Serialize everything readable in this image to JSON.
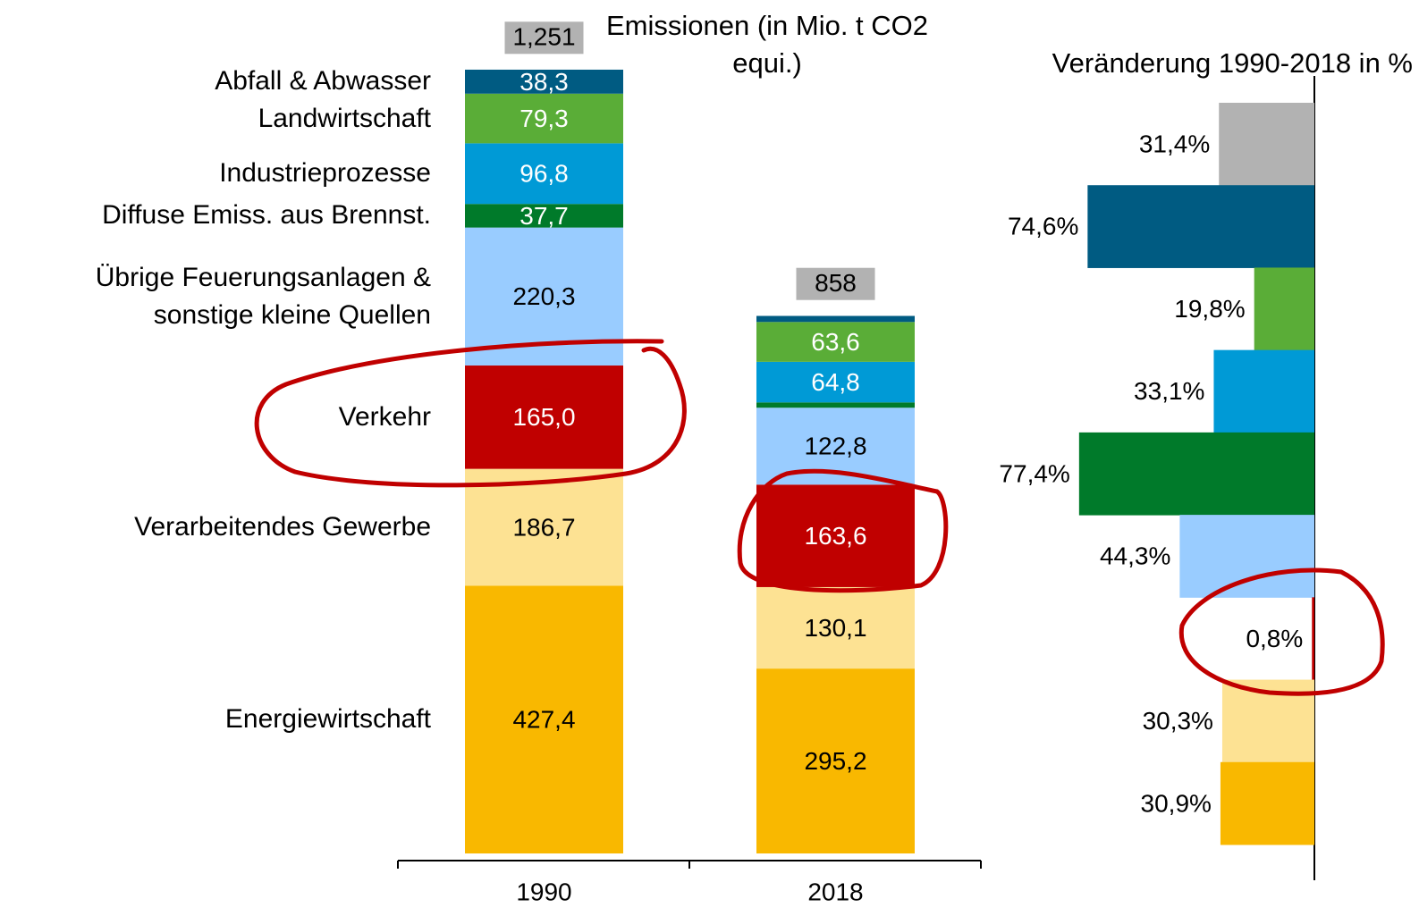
{
  "chart_data": [
    {
      "type": "stacked_bar",
      "title": "Emissionen (in Mio. t CO2 equi.)",
      "categories": [
        "1990",
        "2018"
      ],
      "ylim": [
        0,
        1260
      ],
      "series": [
        {
          "name": "Energiewirtschaft",
          "color": "#f9b800",
          "label_color": "#000000",
          "values": [
            427.4,
            295.2
          ],
          "value_labels": [
            "427,4",
            "295,2"
          ]
        },
        {
          "name": "Verarbeitendes Gewerbe",
          "color": "#fde293",
          "label_color": "#000000",
          "values": [
            186.7,
            130.1
          ],
          "value_labels": [
            "186,7",
            "130,1"
          ]
        },
        {
          "name": "Verkehr",
          "color": "#c00000",
          "label_color": "#ffffff",
          "values": [
            165.0,
            163.6
          ],
          "value_labels": [
            "165,0",
            "163,6"
          ]
        },
        {
          "name": "Übrige Feuerungsanlagen & sonstige kleine Quellen",
          "color": "#99ccff",
          "label_color": "#000000",
          "values": [
            220.3,
            122.8
          ],
          "value_labels": [
            "220,3",
            "122,8"
          ]
        },
        {
          "name": "Diffuse Emiss. aus Brennst.",
          "color": "#007a2a",
          "label_color": "#ffffff",
          "values": [
            37.7,
            8.5
          ],
          "value_labels": [
            "37,7",
            null
          ]
        },
        {
          "name": "Industrieprozesse",
          "color": "#009ad6",
          "label_color": "#ffffff",
          "values": [
            96.8,
            64.8
          ],
          "value_labels": [
            "96,8",
            "64,8"
          ]
        },
        {
          "name": "Landwirtschaft",
          "color": "#5aad37",
          "label_color": "#ffffff",
          "values": [
            79.3,
            63.6
          ],
          "value_labels": [
            "79,3",
            "63,6"
          ]
        },
        {
          "name": "Abfall & Abwasser",
          "color": "#005b82",
          "label_color": "#ffffff",
          "values": [
            38.3,
            9.7
          ],
          "value_labels": [
            "38,3",
            null
          ]
        }
      ],
      "totals": [
        1251,
        858
      ],
      "total_labels": [
        "1,251",
        "858"
      ],
      "total_color": "#b2b2b2"
    },
    {
      "type": "hbar",
      "title": "Veränderung 1990-2018 in %",
      "xlim": [
        -80,
        0
      ],
      "values": [
        -31.4,
        -74.6,
        -19.8,
        -33.1,
        -77.4,
        -44.3,
        -0.8,
        -30.3,
        -30.9
      ],
      "value_labels": [
        "31,4%",
        "74,6%",
        "19,8%",
        "33,1%",
        "77,4%",
        "44,3%",
        "0,8%",
        "30,3%",
        "30,9%"
      ],
      "colors": [
        "#b2b2b2",
        "#005b82",
        "#5aad37",
        "#009ad6",
        "#007a2a",
        "#99ccff",
        "#c00000",
        "#fde293",
        "#f9b800"
      ]
    }
  ]
}
